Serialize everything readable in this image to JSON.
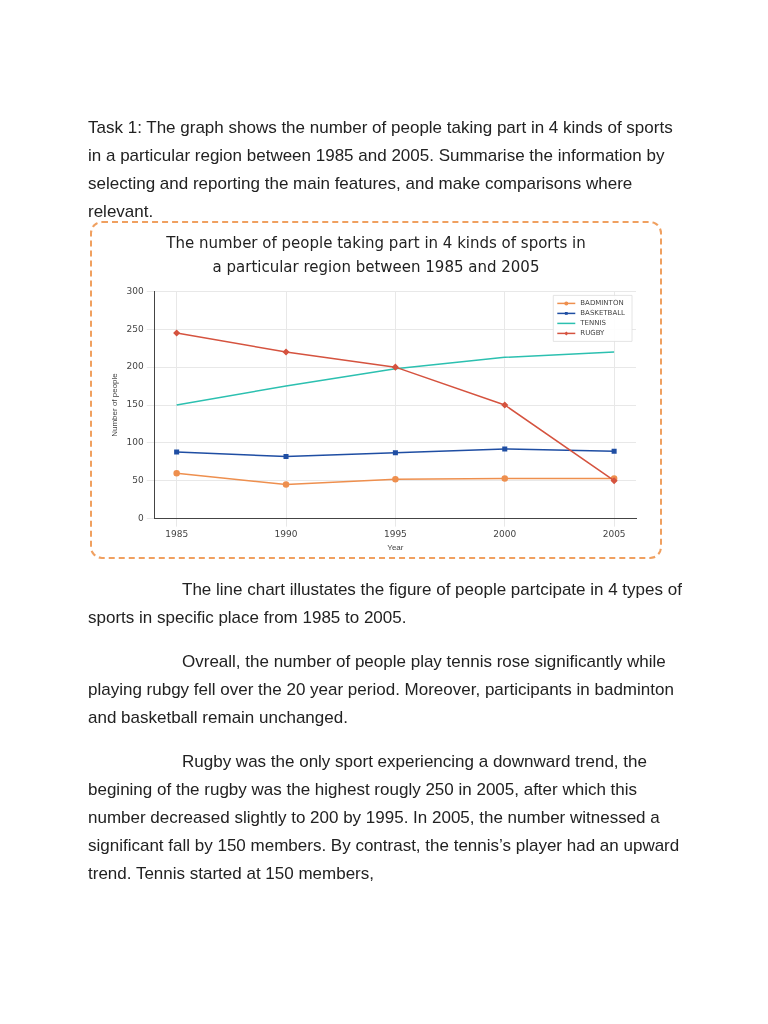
{
  "chart_data": {
    "type": "line",
    "title": "The number of people taking part in 4 kinds of sports in a particular region between 1985 and 2005",
    "xlabel": "Year",
    "ylabel": "Number of people",
    "x": [
      1985,
      1990,
      1995,
      2000,
      2005
    ],
    "series": [
      {
        "name": "BADMINTON",
        "color": "#ee8f4e",
        "marker": "circle",
        "values": [
          60,
          45,
          52,
          53,
          53
        ]
      },
      {
        "name": "BASKETBALL",
        "color": "#1f4ea3",
        "marker": "square",
        "values": [
          88,
          82,
          87,
          92,
          89
        ]
      },
      {
        "name": "TENNIS",
        "color": "#2cc0b0",
        "marker": "none",
        "values": [
          150,
          175,
          198,
          213,
          220
        ]
      },
      {
        "name": "RUGBY",
        "color": "#d5533f",
        "marker": "diamond",
        "values": [
          245,
          220,
          200,
          150,
          50
        ]
      }
    ],
    "xlim": [
      1984,
      2006
    ],
    "xticks": [
      1985,
      1990,
      1995,
      2000,
      2005
    ],
    "ylim": [
      0,
      300
    ],
    "yticks": [
      0,
      50,
      100,
      150,
      200,
      250,
      300
    ],
    "grid": true,
    "legend": "top right",
    "line_style": "solid",
    "annotations": [
      "Task 1: The graph shows the number of people taking part in 4 kinds of sports in a particular region between 1985 and 2005. Summarise the information by selecting and reporting the main features, and make comparisons where relevant.",
      "The line chart illustates the figure of people partcipate in 4 types of sports in specific place from 1985 to 2005.",
      "Ovreall, the number of people play tennis rose significantly while playing rubgy fell over the 20 year period. Moreover, participants in badminton and basketball remain unchanged.",
      "Rugby was the only sport experiencing a downward trend, the begining of the rugby was the highest rougly 250 in 2005, after which this number decreased slightly to 200 by 1995. In 2005, the number witnessed a significant fall by 150 members. By contrast, the tennis’s player had an upward trend. Tennis started at 150 members,"
    ]
  }
}
